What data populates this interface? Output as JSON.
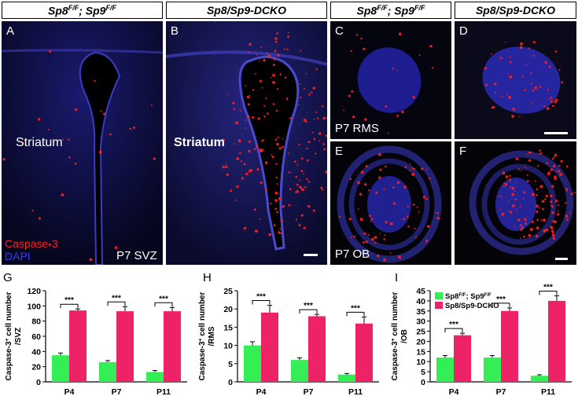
{
  "headers": [
    {
      "base": "Sp8",
      "sup1": "F/F",
      "mid": "; Sp9",
      "sup2": "F/F"
    },
    {
      "base": "Sp8/Sp9-DCKO",
      "sup1": "",
      "mid": "",
      "sup2": ""
    },
    {
      "base": "Sp8",
      "sup1": "F/F",
      "mid": "; Sp9",
      "sup2": "F/F"
    },
    {
      "base": "Sp8/Sp9-DCKO",
      "sup1": "",
      "mid": "",
      "sup2": ""
    }
  ],
  "panels": {
    "A": {
      "label": "A",
      "region": "Striatum",
      "caption_red": "Caspase-3",
      "caption_blue": "DAPI",
      "tag": "P7 SVZ"
    },
    "B": {
      "label": "B",
      "region": "Striatum"
    },
    "C": {
      "label": "C",
      "tag": "P7 RMS"
    },
    "D": {
      "label": "D"
    },
    "E": {
      "label": "E",
      "tag": "P7 OB"
    },
    "F": {
      "label": "F"
    }
  },
  "colors": {
    "control": "#33ee55",
    "dcko": "#ee2266",
    "red": "#ff2020",
    "blue": "#2a2ad8"
  },
  "chart_data": [
    {
      "panel": "G",
      "type": "bar",
      "categories": [
        "P4",
        "P7",
        "P11"
      ],
      "series": [
        {
          "name": "",
          "values": [
            35,
            26,
            13
          ],
          "errors": [
            3,
            2,
            2
          ]
        },
        {
          "name": "",
          "values": [
            94,
            93,
            93
          ],
          "errors": [
            2,
            6,
            5
          ]
        }
      ],
      "ylabel_line1": "Caspase-3",
      "ylabel_sup": "+",
      "ylabel_line1b": " cell number",
      "ylabel_line2": "/SVZ",
      "ylim": [
        0,
        120
      ],
      "yticks": [
        0,
        20,
        40,
        60,
        80,
        100,
        120
      ],
      "significance": [
        "***",
        "***",
        "***"
      ]
    },
    {
      "panel": "H",
      "type": "bar",
      "categories": [
        "P4",
        "P7",
        "P11"
      ],
      "series": [
        {
          "name": "",
          "values": [
            10,
            6,
            2
          ],
          "errors": [
            1,
            0.6,
            0.3
          ]
        },
        {
          "name": "",
          "values": [
            19,
            18,
            16
          ],
          "errors": [
            2,
            0.5,
            1.8
          ]
        }
      ],
      "ylabel_line1": "Caspase-3",
      "ylabel_sup": "+",
      "ylabel_line1b": " cell number",
      "ylabel_line2": "/RMS",
      "ylim": [
        0,
        25
      ],
      "yticks": [
        0,
        5,
        10,
        15,
        20,
        25
      ],
      "significance": [
        "***",
        "***",
        "***"
      ]
    },
    {
      "panel": "I",
      "type": "bar",
      "categories": [
        "P4",
        "P7",
        "P11"
      ],
      "series": [
        {
          "name": "Sp8F/F; Sp9F/F",
          "values": [
            12,
            12,
            3
          ],
          "errors": [
            1,
            1,
            0.5
          ]
        },
        {
          "name": "Sp8/Sp9-DCKO",
          "values": [
            23,
            35,
            40
          ],
          "errors": [
            1,
            1.5,
            2.5
          ]
        }
      ],
      "legend": [
        {
          "base": "Sp8",
          "sup1": "F/F",
          "mid": "; Sp9",
          "sup2": "F/F"
        },
        {
          "base": "Sp8/Sp9-DCKO",
          "sup1": "",
          "mid": "",
          "sup2": ""
        }
      ],
      "legend_position": "top-left",
      "ylabel_line1": "Caspase-3",
      "ylabel_sup": "+",
      "ylabel_line1b": " cell number",
      "ylabel_line2": "/OB",
      "ylim": [
        0,
        45
      ],
      "yticks": [
        0,
        5,
        10,
        15,
        20,
        25,
        30,
        35,
        40,
        45
      ],
      "significance": [
        "***",
        "***",
        "***"
      ]
    }
  ]
}
